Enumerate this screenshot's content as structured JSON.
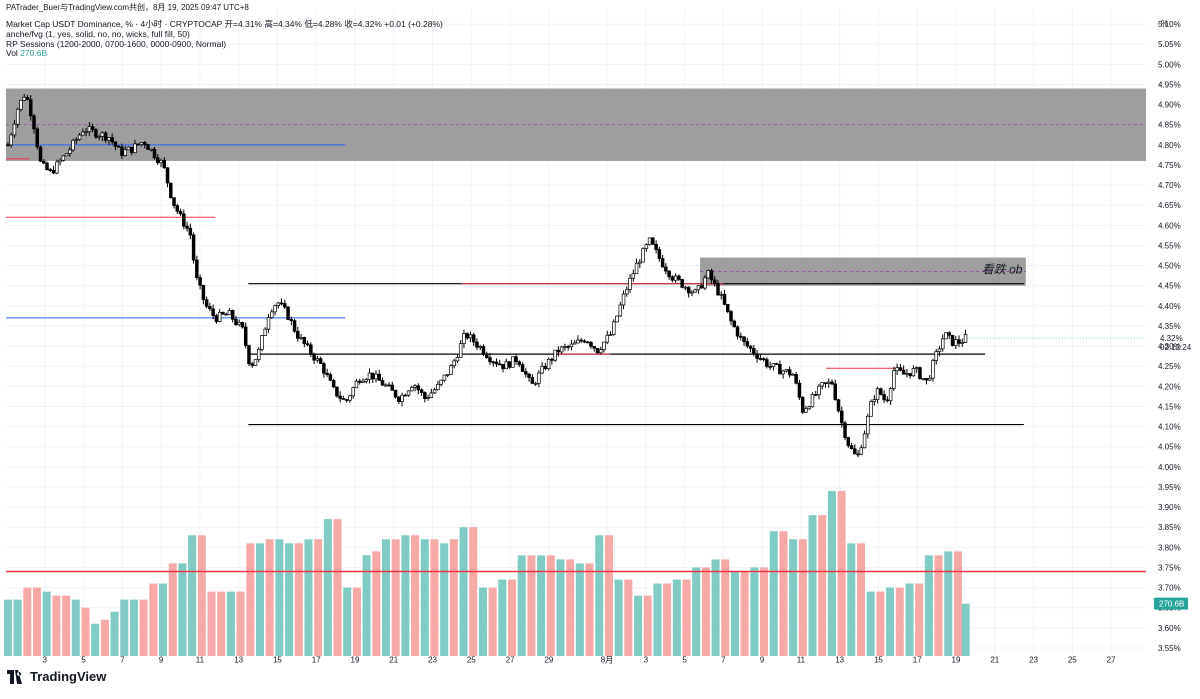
{
  "header": {
    "attribution": "PATrader_Buer与TradingView.com共创，8月 19, 2025 09:47 UTC+8",
    "symbol_line": "Market Cap USDT Dominance, % · 4小时 · CRYPTOCAP  开=4.31%  高=4.34%  低=4.28%  收=4.32%  +0.01 (+0.28%)",
    "indicator1": "anche/fvg (1, yes, solid, no, no, wicks, full fill, 50)",
    "indicator2": "RP Sessions (1200-2000, 0700-1600, 0000-0900, Normal)",
    "vol_label": "Vol",
    "vol_value": "270.6B"
  },
  "footer": {
    "logo_text": "TradingView"
  },
  "colors": {
    "grid": "#f0f3fa",
    "zone": "#9e9e9e",
    "candle_up": "#ffffff",
    "candle_down": "#000000",
    "vol_up": "#80cbc4",
    "vol_down": "#f7a9a7",
    "blue_line": "#2962ff",
    "red_line": "#f23645",
    "axis_text": "#131722",
    "price_badge_bg": "#26a69a"
  },
  "chart_data": {
    "type": "candlestick",
    "y_unit": "%",
    "ylim": [
      3.53,
      5.14
    ],
    "y_ticks": [
      "5.10%",
      "5.05%",
      "5.00%",
      "4.95%",
      "4.90%",
      "4.85%",
      "4.80%",
      "4.75%",
      "4.70%",
      "4.65%",
      "4.60%",
      "4.55%",
      "4.50%",
      "4.45%",
      "4.40%",
      "4.35%",
      "4.30%",
      "4.25%",
      "4.20%",
      "4.15%",
      "4.10%",
      "4.05%",
      "4.00%",
      "3.95%",
      "3.90%",
      "3.85%",
      "3.80%",
      "3.75%",
      "3.70%",
      "3.65%",
      "3.60%",
      "3.55%"
    ],
    "y_tick_values": [
      5.1,
      5.05,
      5.0,
      4.95,
      4.9,
      4.85,
      4.8,
      4.75,
      4.7,
      4.65,
      4.6,
      4.55,
      4.5,
      4.45,
      4.4,
      4.35,
      4.3,
      4.25,
      4.2,
      4.15,
      4.1,
      4.05,
      4.0,
      3.95,
      3.9,
      3.85,
      3.8,
      3.75,
      3.7,
      3.65,
      3.6,
      3.55
    ],
    "x_ticks": [
      {
        "label": "3",
        "day": 3
      },
      {
        "label": "5",
        "day": 5
      },
      {
        "label": "7",
        "day": 7
      },
      {
        "label": "9",
        "day": 9
      },
      {
        "label": "11",
        "day": 11
      },
      {
        "label": "13",
        "day": 13
      },
      {
        "label": "15",
        "day": 15
      },
      {
        "label": "17",
        "day": 17
      },
      {
        "label": "19",
        "day": 19
      },
      {
        "label": "21",
        "day": 21
      },
      {
        "label": "23",
        "day": 23
      },
      {
        "label": "25",
        "day": 25
      },
      {
        "label": "27",
        "day": 27
      },
      {
        "label": "29",
        "day": 29
      },
      {
        "label": "8月",
        "day": 32
      },
      {
        "label": "3",
        "day": 34
      },
      {
        "label": "5",
        "day": 36
      },
      {
        "label": "7",
        "day": 38
      },
      {
        "label": "9",
        "day": 40
      },
      {
        "label": "11",
        "day": 42
      },
      {
        "label": "13",
        "day": 44
      },
      {
        "label": "15",
        "day": 46
      },
      {
        "label": "17",
        "day": 48
      },
      {
        "label": "19",
        "day": 50
      },
      {
        "label": "21",
        "day": 52
      },
      {
        "label": "23",
        "day": 54
      },
      {
        "label": "25",
        "day": 56
      },
      {
        "label": "27",
        "day": 58
      }
    ],
    "x_day_range": [
      1.0,
      59.8
    ],
    "price_path": [
      [
        1.1,
        4.8
      ],
      [
        1.6,
        4.89
      ],
      [
        2.0,
        4.93
      ],
      [
        2.4,
        4.86
      ],
      [
        2.8,
        4.75
      ],
      [
        3.3,
        4.73
      ],
      [
        3.8,
        4.76
      ],
      [
        4.3,
        4.79
      ],
      [
        5.0,
        4.84
      ],
      [
        5.6,
        4.83
      ],
      [
        6.3,
        4.82
      ],
      [
        6.9,
        4.78
      ],
      [
        7.5,
        4.79
      ],
      [
        8.1,
        4.81
      ],
      [
        8.6,
        4.78
      ],
      [
        9.1,
        4.75
      ],
      [
        9.6,
        4.66
      ],
      [
        10.0,
        4.62
      ],
      [
        10.5,
        4.58
      ],
      [
        10.8,
        4.47
      ],
      [
        11.3,
        4.4
      ],
      [
        11.8,
        4.37
      ],
      [
        12.5,
        4.38
      ],
      [
        13.2,
        4.34
      ],
      [
        13.6,
        4.25
      ],
      [
        14.0,
        4.28
      ],
      [
        14.6,
        4.39
      ],
      [
        15.0,
        4.41
      ],
      [
        15.5,
        4.38
      ],
      [
        16.0,
        4.33
      ],
      [
        16.6,
        4.29
      ],
      [
        17.3,
        4.25
      ],
      [
        17.9,
        4.19
      ],
      [
        18.5,
        4.16
      ],
      [
        19.2,
        4.22
      ],
      [
        19.8,
        4.23
      ],
      [
        20.6,
        4.2
      ],
      [
        21.3,
        4.17
      ],
      [
        22.0,
        4.21
      ],
      [
        22.6,
        4.17
      ],
      [
        23.3,
        4.2
      ],
      [
        24.0,
        4.25
      ],
      [
        24.7,
        4.33
      ],
      [
        25.4,
        4.3
      ],
      [
        26.0,
        4.27
      ],
      [
        26.7,
        4.25
      ],
      [
        27.4,
        4.27
      ],
      [
        28.1,
        4.2
      ],
      [
        28.8,
        4.25
      ],
      [
        29.5,
        4.29
      ],
      [
        30.2,
        4.3
      ],
      [
        30.9,
        4.32
      ],
      [
        31.5,
        4.29
      ],
      [
        32.2,
        4.33
      ],
      [
        32.9,
        4.43
      ],
      [
        33.6,
        4.51
      ],
      [
        34.2,
        4.56
      ],
      [
        34.8,
        4.51
      ],
      [
        35.4,
        4.47
      ],
      [
        36.0,
        4.45
      ],
      [
        36.6,
        4.43
      ],
      [
        37.2,
        4.48
      ],
      [
        37.8,
        4.43
      ],
      [
        38.4,
        4.36
      ],
      [
        39.0,
        4.31
      ],
      [
        39.7,
        4.28
      ],
      [
        40.4,
        4.25
      ],
      [
        41.0,
        4.24
      ],
      [
        41.6,
        4.23
      ],
      [
        42.1,
        4.14
      ],
      [
        42.6,
        4.17
      ],
      [
        43.1,
        4.2
      ],
      [
        43.6,
        4.21
      ],
      [
        44.1,
        4.11
      ],
      [
        44.5,
        4.05
      ],
      [
        44.9,
        4.02
      ],
      [
        45.3,
        4.09
      ],
      [
        45.7,
        4.17
      ],
      [
        46.0,
        4.19
      ],
      [
        46.4,
        4.16
      ],
      [
        46.8,
        4.24
      ],
      [
        47.3,
        4.23
      ],
      [
        47.9,
        4.24
      ],
      [
        48.5,
        4.21
      ],
      [
        49.0,
        4.28
      ],
      [
        49.4,
        4.33
      ],
      [
        49.8,
        4.31
      ],
      [
        50.2,
        4.31
      ],
      [
        50.5,
        4.32
      ]
    ],
    "last_price": "4.32%",
    "countdown": "02:12:24",
    "zones": [
      {
        "name": "supply-zone-top",
        "y_top": 4.94,
        "y_bottom": 4.76,
        "x_start": 1.0,
        "x_end": 59.8,
        "mid": 4.85
      },
      {
        "name": "bearish-ob-zone",
        "y_top": 4.52,
        "y_bottom": 4.45,
        "x_start": 36.8,
        "x_end": 53.6,
        "mid": 4.485,
        "label": "看跌 ob"
      }
    ],
    "levels": [
      {
        "name": "range-high-line",
        "y": 4.455,
        "x_start": 13.5,
        "x_end": 53.5,
        "color": "#000000"
      },
      {
        "name": "range-mid-line",
        "y": 4.28,
        "x_start": 13.5,
        "x_end": 51.5,
        "color": "#000000"
      },
      {
        "name": "range-low-line",
        "y": 4.105,
        "x_start": 13.5,
        "x_end": 53.5,
        "color": "#000000"
      },
      {
        "name": "blue-level-upper",
        "y": 4.8,
        "x_start": 1.0,
        "x_end": 18.5,
        "color": "#2962ff"
      },
      {
        "name": "blue-level-lower",
        "y": 4.37,
        "x_start": 1.0,
        "x_end": 18.5,
        "color": "#2962ff"
      },
      {
        "name": "red-level-1",
        "y": 4.765,
        "x_start": 1.0,
        "x_end": 2.2,
        "color": "#f23645"
      },
      {
        "name": "red-level-2",
        "y": 4.62,
        "x_start": 1.0,
        "x_end": 11.8,
        "color": "#f23645"
      },
      {
        "name": "red-level-3",
        "y": 4.455,
        "x_start": 24.5,
        "x_end": 38.0,
        "color": "#f23645"
      },
      {
        "name": "red-level-4",
        "y": 4.245,
        "x_start": 43.3,
        "x_end": 47.3,
        "color": "#f23645"
      },
      {
        "name": "red-level-5",
        "y": 4.28,
        "x_start": 29.5,
        "x_end": 32.2,
        "color": "#f23645"
      }
    ],
    "volume_bars": [
      [
        1.1,
        3.67,
        "u"
      ],
      [
        1.6,
        3.67,
        "u"
      ],
      [
        2.1,
        3.7,
        "d"
      ],
      [
        2.6,
        3.7,
        "d"
      ],
      [
        3.1,
        3.69,
        "u"
      ],
      [
        3.6,
        3.68,
        "d"
      ],
      [
        4.1,
        3.68,
        "d"
      ],
      [
        4.6,
        3.67,
        "u"
      ],
      [
        5.1,
        3.65,
        "d"
      ],
      [
        5.6,
        3.61,
        "u"
      ],
      [
        6.1,
        3.62,
        "d"
      ],
      [
        6.6,
        3.64,
        "u"
      ],
      [
        7.1,
        3.67,
        "u"
      ],
      [
        7.6,
        3.67,
        "u"
      ],
      [
        8.1,
        3.67,
        "d"
      ],
      [
        8.6,
        3.71,
        "d"
      ],
      [
        9.1,
        3.71,
        "u"
      ],
      [
        9.6,
        3.76,
        "d"
      ],
      [
        10.1,
        3.76,
        "u"
      ],
      [
        10.6,
        3.83,
        "u"
      ],
      [
        11.1,
        3.83,
        "d"
      ],
      [
        11.6,
        3.69,
        "d"
      ],
      [
        12.1,
        3.69,
        "d"
      ],
      [
        12.6,
        3.69,
        "u"
      ],
      [
        13.1,
        3.69,
        "d"
      ],
      [
        13.6,
        3.81,
        "d"
      ],
      [
        14.1,
        3.81,
        "u"
      ],
      [
        14.6,
        3.82,
        "d"
      ],
      [
        15.1,
        3.82,
        "u"
      ],
      [
        15.6,
        3.81,
        "u"
      ],
      [
        16.1,
        3.81,
        "d"
      ],
      [
        16.6,
        3.82,
        "u"
      ],
      [
        17.1,
        3.82,
        "d"
      ],
      [
        17.6,
        3.87,
        "u"
      ],
      [
        18.1,
        3.87,
        "d"
      ],
      [
        18.6,
        3.7,
        "u"
      ],
      [
        19.1,
        3.7,
        "d"
      ],
      [
        19.6,
        3.78,
        "u"
      ],
      [
        20.1,
        3.79,
        "d"
      ],
      [
        20.6,
        3.82,
        "u"
      ],
      [
        21.1,
        3.82,
        "d"
      ],
      [
        21.6,
        3.83,
        "u"
      ],
      [
        22.1,
        3.83,
        "d"
      ],
      [
        22.6,
        3.82,
        "u"
      ],
      [
        23.1,
        3.82,
        "d"
      ],
      [
        23.6,
        3.81,
        "u"
      ],
      [
        24.1,
        3.82,
        "d"
      ],
      [
        24.6,
        3.85,
        "u"
      ],
      [
        25.1,
        3.85,
        "d"
      ],
      [
        25.6,
        3.7,
        "u"
      ],
      [
        26.1,
        3.7,
        "d"
      ],
      [
        26.6,
        3.72,
        "u"
      ],
      [
        27.1,
        3.72,
        "d"
      ],
      [
        27.6,
        3.78,
        "u"
      ],
      [
        28.1,
        3.78,
        "d"
      ],
      [
        28.6,
        3.78,
        "u"
      ],
      [
        29.1,
        3.78,
        "d"
      ],
      [
        29.6,
        3.77,
        "u"
      ],
      [
        30.1,
        3.77,
        "d"
      ],
      [
        30.6,
        3.76,
        "u"
      ],
      [
        31.1,
        3.76,
        "d"
      ],
      [
        31.6,
        3.83,
        "u"
      ],
      [
        32.1,
        3.83,
        "d"
      ],
      [
        32.6,
        3.72,
        "u"
      ],
      [
        33.1,
        3.72,
        "d"
      ],
      [
        33.6,
        3.68,
        "u"
      ],
      [
        34.1,
        3.68,
        "d"
      ],
      [
        34.6,
        3.71,
        "u"
      ],
      [
        35.1,
        3.71,
        "d"
      ],
      [
        35.6,
        3.72,
        "u"
      ],
      [
        36.1,
        3.72,
        "d"
      ],
      [
        36.6,
        3.75,
        "u"
      ],
      [
        37.1,
        3.75,
        "d"
      ],
      [
        37.6,
        3.77,
        "u"
      ],
      [
        38.1,
        3.77,
        "d"
      ],
      [
        38.6,
        3.74,
        "u"
      ],
      [
        39.1,
        3.74,
        "d"
      ],
      [
        39.6,
        3.75,
        "u"
      ],
      [
        40.1,
        3.75,
        "d"
      ],
      [
        40.6,
        3.84,
        "u"
      ],
      [
        41.1,
        3.84,
        "d"
      ],
      [
        41.6,
        3.82,
        "u"
      ],
      [
        42.1,
        3.82,
        "d"
      ],
      [
        42.6,
        3.88,
        "u"
      ],
      [
        43.1,
        3.88,
        "d"
      ],
      [
        43.6,
        3.94,
        "u"
      ],
      [
        44.1,
        3.94,
        "d"
      ],
      [
        44.6,
        3.81,
        "u"
      ],
      [
        45.1,
        3.81,
        "d"
      ],
      [
        45.6,
        3.69,
        "u"
      ],
      [
        46.1,
        3.69,
        "d"
      ],
      [
        46.6,
        3.7,
        "u"
      ],
      [
        47.1,
        3.7,
        "d"
      ],
      [
        47.6,
        3.71,
        "u"
      ],
      [
        48.1,
        3.71,
        "d"
      ],
      [
        48.6,
        3.78,
        "u"
      ],
      [
        49.1,
        3.78,
        "d"
      ],
      [
        49.6,
        3.79,
        "u"
      ],
      [
        50.1,
        3.79,
        "d"
      ],
      [
        50.5,
        3.66,
        "u"
      ]
    ],
    "volume_avg_line": 3.74,
    "volume_badge": "270.6B",
    "y_unit_label": "%"
  }
}
